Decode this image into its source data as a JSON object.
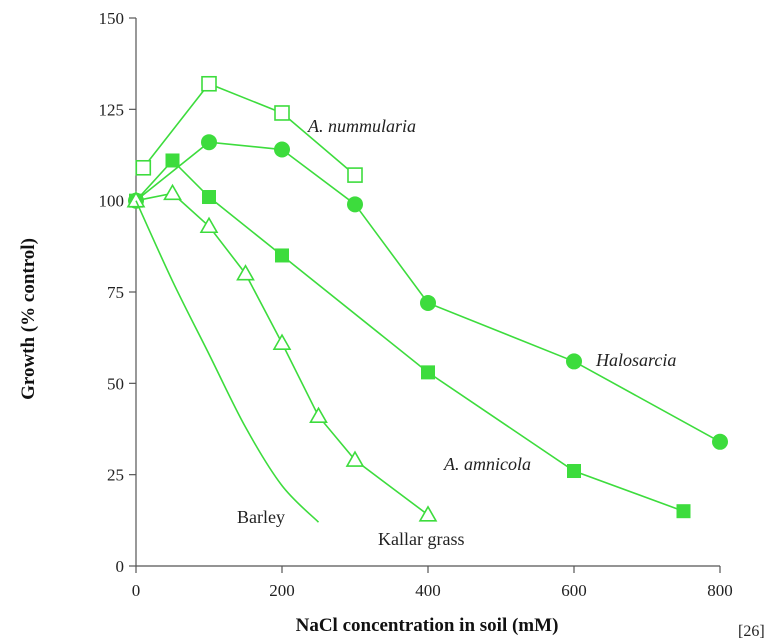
{
  "chart_data": {
    "type": "line",
    "title": "",
    "xlabel": "NaCl concentration in soil (mM)",
    "ylabel": "Growth (% control)",
    "xlim": [
      0,
      800
    ],
    "ylim": [
      0,
      150
    ],
    "xticks": [
      0,
      200,
      400,
      600,
      800
    ],
    "yticks": [
      0,
      25,
      50,
      75,
      100,
      125,
      150
    ],
    "grid": false,
    "legend": "none",
    "series": [
      {
        "name": "A. nummularia",
        "marker": "square-open",
        "color": "#3ddc3d",
        "x": [
          10,
          100,
          200,
          300
        ],
        "y": [
          109,
          132,
          124,
          107
        ]
      },
      {
        "name": "Halosarcia",
        "marker": "circle-filled",
        "color": "#3ddc3d",
        "x": [
          0,
          100,
          200,
          300,
          400,
          600,
          800
        ],
        "y": [
          100,
          116,
          114,
          99,
          72,
          56,
          34
        ]
      },
      {
        "name": "A. amnicola",
        "marker": "square-filled",
        "color": "#3ddc3d",
        "x": [
          0,
          50,
          100,
          200,
          400,
          600,
          750
        ],
        "y": [
          100,
          111,
          101,
          85,
          53,
          26,
          15
        ]
      },
      {
        "name": "Kallar grass",
        "marker": "triangle-open",
        "color": "#3ddc3d",
        "x": [
          0,
          50,
          100,
          150,
          200,
          250,
          300,
          400
        ],
        "y": [
          100,
          102,
          93,
          80,
          61,
          41,
          29,
          14
        ]
      },
      {
        "name": "Barley",
        "marker": "none",
        "color": "#3ddc3d",
        "x": [
          0,
          50,
          100,
          150,
          200,
          250
        ],
        "y": [
          100,
          78,
          58,
          38,
          22,
          12
        ]
      }
    ],
    "labels": {
      "nummularia": "A. nummularia",
      "halosarcia": "Halosarcia",
      "amnicola": "A. amnicola",
      "barley": "Barley",
      "kallar": "Kallar grass"
    },
    "citation": "[26]"
  }
}
